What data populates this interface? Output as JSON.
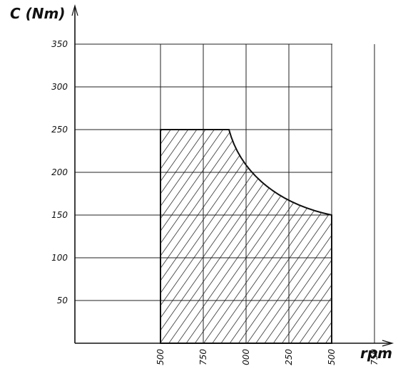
{
  "chart_data": {
    "type": "area",
    "title": "",
    "ylabel": "C (Nm)",
    "xlabel": "rpm",
    "x_tick_labels": [
      "500",
      "750",
      "000",
      "250",
      "500",
      "750"
    ],
    "y_ticks": [
      50,
      100,
      150,
      200,
      250,
      300,
      350
    ],
    "xlim": [
      0,
      1750
    ],
    "ylim": [
      0,
      350
    ],
    "grid": true,
    "region": {
      "fill": "hatched",
      "x": [
        500,
        500,
        900,
        1000,
        1100,
        1200,
        1300,
        1400,
        1500,
        1500
      ],
      "y": [
        0,
        250,
        250,
        222,
        200,
        182,
        167,
        156,
        150,
        0
      ]
    }
  }
}
